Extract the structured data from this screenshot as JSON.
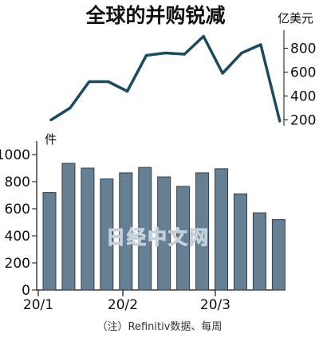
{
  "chart_data": {
    "title": "全球的并购锐减",
    "note": "（注）Refinitiv数据、每周",
    "watermark": "日经中文网",
    "x_labels": [
      "20/1",
      "20/2",
      "20/3"
    ],
    "line": {
      "type": "line",
      "unit": "亿美元",
      "ylim": [
        150,
        950
      ],
      "yticks": [
        200,
        400,
        600,
        800
      ],
      "color": "#1c4a5e",
      "values": [
        200,
        300,
        520,
        520,
        440,
        740,
        760,
        750,
        900,
        590,
        760,
        830,
        190
      ]
    },
    "bar": {
      "type": "bar",
      "unit": "件",
      "ylim": [
        0,
        1100
      ],
      "yticks": [
        0,
        200,
        400,
        600,
        800,
        1000
      ],
      "color": "#667f93",
      "edge": "#2e3f4c",
      "values": [
        720,
        935,
        900,
        820,
        865,
        905,
        835,
        765,
        865,
        895,
        710,
        570,
        520
      ]
    }
  }
}
